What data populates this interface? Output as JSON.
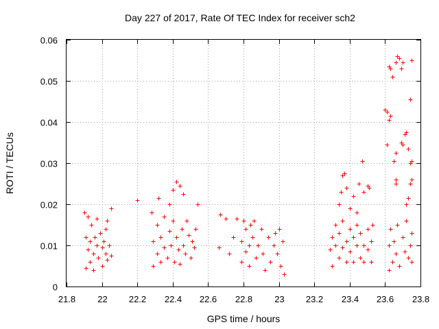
{
  "chart_data": {
    "type": "scatter",
    "title": "Day 227 of 2017, Rate Of TEC Index for receiver sch2",
    "xlabel": "GPS time / hours",
    "ylabel": "ROTI / TECUs",
    "xlim": [
      21.8,
      23.8
    ],
    "ylim": [
      0,
      0.06
    ],
    "x_ticks": [
      "21.8",
      "22",
      "22.2",
      "22.4",
      "22.6",
      "22.8",
      "23",
      "23.2",
      "23.4",
      "23.6",
      "23.8"
    ],
    "y_ticks": [
      "0",
      "0.01",
      "0.02",
      "0.03",
      "0.04",
      "0.05",
      "0.06"
    ],
    "grid": true,
    "marker": "+",
    "color": "#ff0000",
    "series": [
      {
        "name": "ROTI",
        "points": [
          [
            21.9,
            0.018
          ],
          [
            21.91,
            0.0045
          ],
          [
            21.91,
            0.012
          ],
          [
            21.92,
            0.009
          ],
          [
            21.92,
            0.017
          ],
          [
            21.93,
            0.006
          ],
          [
            21.93,
            0.011
          ],
          [
            21.94,
            0.015
          ],
          [
            21.95,
            0.008
          ],
          [
            21.95,
            0.004
          ],
          [
            21.96,
            0.012
          ],
          [
            21.97,
            0.01
          ],
          [
            21.97,
            0.0165
          ],
          [
            21.98,
            0.007
          ],
          [
            21.99,
            0.013
          ],
          [
            22.0,
            0.0095
          ],
          [
            22.0,
            0.005
          ],
          [
            22.01,
            0.011
          ],
          [
            22.02,
            0.008
          ],
          [
            22.02,
            0.014
          ],
          [
            22.03,
            0.016
          ],
          [
            22.03,
            0.0065
          ],
          [
            22.04,
            0.01
          ],
          [
            22.05,
            0.019
          ],
          [
            22.05,
            0.0075
          ],
          [
            22.28,
            0.018
          ],
          [
            22.29,
            0.005
          ],
          [
            22.29,
            0.011
          ],
          [
            22.31,
            0.008
          ],
          [
            22.31,
            0.015
          ],
          [
            22.33,
            0.012
          ],
          [
            22.33,
            0.006
          ],
          [
            22.35,
            0.017
          ],
          [
            22.35,
            0.0095
          ],
          [
            22.37,
            0.007
          ],
          [
            22.38,
            0.0135
          ],
          [
            22.39,
            0.01
          ],
          [
            22.4,
            0.016
          ],
          [
            22.41,
            0.006
          ],
          [
            22.42,
            0.012
          ],
          [
            22.43,
            0.009
          ],
          [
            22.44,
            0.0055
          ],
          [
            22.45,
            0.014
          ],
          [
            22.46,
            0.01
          ],
          [
            22.47,
            0.008
          ],
          [
            22.48,
            0.016
          ],
          [
            22.49,
            0.0125
          ],
          [
            22.5,
            0.007
          ],
          [
            22.51,
            0.011
          ],
          [
            22.52,
            0.0095
          ],
          [
            22.53,
            0.014
          ],
          [
            22.54,
            0.02
          ],
          [
            22.2,
            0.021
          ],
          [
            22.4,
            0.0235
          ],
          [
            22.42,
            0.0255
          ],
          [
            22.44,
            0.0245
          ],
          [
            22.46,
            0.0225
          ],
          [
            22.38,
            0.02
          ],
          [
            22.32,
            0.0215
          ],
          [
            22.8,
            0.016
          ],
          [
            22.79,
            0.006
          ],
          [
            22.79,
            0.011
          ],
          [
            22.81,
            0.0085
          ],
          [
            22.81,
            0.014
          ],
          [
            22.83,
            0.01
          ],
          [
            22.83,
            0.005
          ],
          [
            22.85,
            0.012
          ],
          [
            22.86,
            0.016
          ],
          [
            22.87,
            0.007
          ],
          [
            22.88,
            0.01
          ],
          [
            22.9,
            0.014
          ],
          [
            22.91,
            0.008
          ],
          [
            22.92,
            0.004
          ],
          [
            22.94,
            0.012
          ],
          [
            22.95,
            0.006
          ],
          [
            22.97,
            0.01
          ],
          [
            22.98,
            0.013
          ],
          [
            22.99,
            0.008
          ],
          [
            23.0,
            0.014
          ],
          [
            23.01,
            0.005
          ],
          [
            23.02,
            0.011
          ],
          [
            23.03,
            0.003
          ],
          [
            22.76,
            0.0165
          ],
          [
            22.84,
            0.015
          ],
          [
            22.67,
            0.0175
          ],
          [
            22.7,
            0.0165
          ],
          [
            22.72,
            0.008
          ],
          [
            22.74,
            0.012
          ],
          [
            22.66,
            0.0095
          ],
          [
            23.29,
            0.009
          ],
          [
            23.3,
            0.005
          ],
          [
            23.3,
            0.012
          ],
          [
            23.32,
            0.01
          ],
          [
            23.32,
            0.015
          ],
          [
            23.34,
            0.007
          ],
          [
            23.34,
            0.013
          ],
          [
            23.36,
            0.0095
          ],
          [
            23.36,
            0.016
          ],
          [
            23.38,
            0.006
          ],
          [
            23.38,
            0.011
          ],
          [
            23.4,
            0.014
          ],
          [
            23.4,
            0.0085
          ],
          [
            23.42,
            0.012
          ],
          [
            23.42,
            0.006
          ],
          [
            23.44,
            0.01
          ],
          [
            23.44,
            0.015
          ],
          [
            23.46,
            0.007
          ],
          [
            23.46,
            0.013
          ],
          [
            23.48,
            0.01
          ],
          [
            23.48,
            0.006
          ],
          [
            23.5,
            0.014
          ],
          [
            23.5,
            0.009
          ],
          [
            23.52,
            0.011
          ],
          [
            23.52,
            0.006
          ],
          [
            23.53,
            0.015
          ],
          [
            23.34,
            0.02
          ],
          [
            23.36,
            0.027
          ],
          [
            23.37,
            0.0275
          ],
          [
            23.38,
            0.024
          ],
          [
            23.4,
            0.019
          ],
          [
            23.42,
            0.022
          ],
          [
            23.45,
            0.025
          ],
          [
            23.48,
            0.023
          ],
          [
            23.47,
            0.0305
          ],
          [
            23.5,
            0.0245
          ],
          [
            23.51,
            0.024
          ],
          [
            23.35,
            0.023
          ],
          [
            23.44,
            0.018
          ],
          [
            23.62,
            0.004
          ],
          [
            23.62,
            0.01
          ],
          [
            23.63,
            0.014
          ],
          [
            23.64,
            0.006
          ],
          [
            23.65,
            0.011
          ],
          [
            23.66,
            0.008
          ],
          [
            23.67,
            0.015
          ],
          [
            23.68,
            0.005
          ],
          [
            23.7,
            0.012
          ],
          [
            23.71,
            0.0085
          ],
          [
            23.72,
            0.016
          ],
          [
            23.73,
            0.007
          ],
          [
            23.74,
            0.01
          ],
          [
            23.75,
            0.006
          ],
          [
            23.75,
            0.013
          ],
          [
            23.6,
            0.043
          ],
          [
            23.61,
            0.0425
          ],
          [
            23.62,
            0.0405
          ],
          [
            23.63,
            0.0415
          ],
          [
            23.61,
            0.0345
          ],
          [
            23.65,
            0.0305
          ],
          [
            23.66,
            0.0325
          ],
          [
            23.69,
            0.035
          ],
          [
            23.7,
            0.0345
          ],
          [
            23.71,
            0.037
          ],
          [
            23.72,
            0.0375
          ],
          [
            23.73,
            0.0335
          ],
          [
            23.74,
            0.03
          ],
          [
            23.75,
            0.0305
          ],
          [
            23.74,
            0.0455
          ],
          [
            23.62,
            0.0535
          ],
          [
            23.63,
            0.053
          ],
          [
            23.64,
            0.051
          ],
          [
            23.66,
            0.0545
          ],
          [
            23.67,
            0.056
          ],
          [
            23.68,
            0.0555
          ],
          [
            23.69,
            0.053
          ],
          [
            23.7,
            0.0545
          ],
          [
            23.75,
            0.055
          ],
          [
            23.66,
            0.026
          ],
          [
            23.66,
            0.025
          ],
          [
            23.73,
            0.0215
          ],
          [
            23.74,
            0.025
          ],
          [
            23.75,
            0.026
          ],
          [
            23.72,
            0.02
          ]
        ]
      }
    ]
  }
}
